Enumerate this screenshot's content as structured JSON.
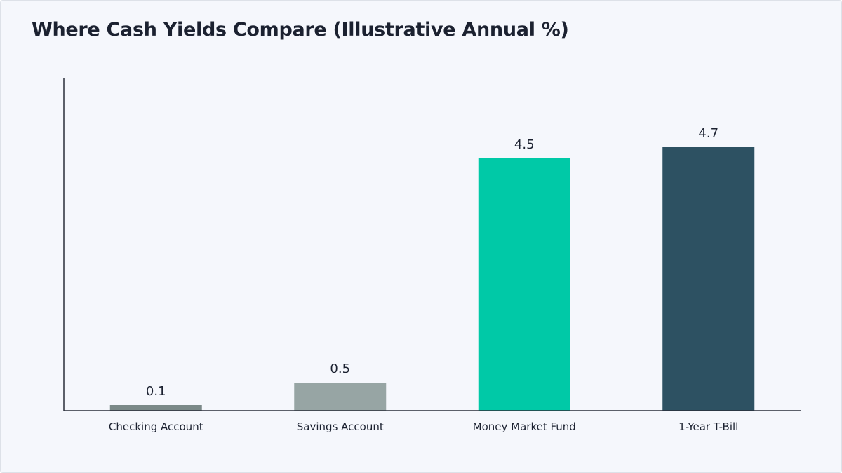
{
  "chart_data": {
    "type": "bar",
    "title": "Where Cash Yields Compare (Illustrative Annual %)",
    "xlabel": "",
    "ylabel": "",
    "categories": [
      "Checking Account",
      "Savings Account",
      "Money Market Fund",
      "1-Year T-Bill"
    ],
    "values": [
      0.1,
      0.5,
      4.5,
      4.7
    ],
    "value_labels": [
      "0.1",
      "0.5",
      "4.5",
      "4.7"
    ],
    "colors": [
      "#7b8988",
      "#97a5a4",
      "#00c9a7",
      "#2d5162"
    ],
    "ylim": [
      0,
      6
    ],
    "grid": false,
    "legend": "none"
  }
}
